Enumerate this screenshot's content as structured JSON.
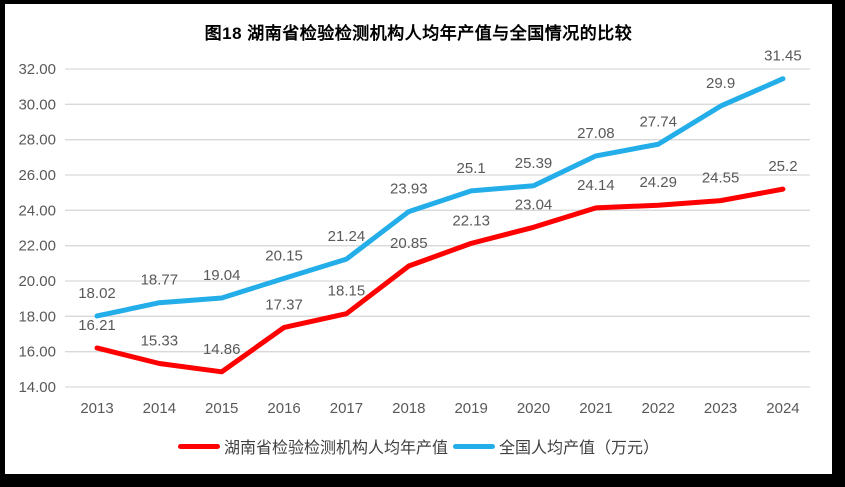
{
  "title": "图18 湖南省检验检测机构人均年产值与全国情况的比较",
  "chart_data": {
    "type": "line",
    "title": "图18 湖南省检验检测机构人均年产值与全国情况的比较",
    "categories": [
      "2013",
      "2014",
      "2015",
      "2016",
      "2017",
      "2018",
      "2019",
      "2020",
      "2021",
      "2022",
      "2023",
      "2024"
    ],
    "series": [
      {
        "key": "hunan",
        "name": "湖南省检验检测机构人均年产值",
        "color": "#FE0000",
        "values": [
          16.21,
          15.33,
          14.86,
          17.37,
          18.15,
          20.85,
          22.13,
          23.04,
          24.14,
          24.29,
          24.55,
          25.2
        ],
        "labels": [
          "16.21",
          "15.33",
          "14.86",
          "17.37",
          "18.15",
          "20.85",
          "22.13",
          "23.04",
          "24.14",
          "24.29",
          "24.55",
          "25.2"
        ]
      },
      {
        "key": "national",
        "name": "全国人均产值（万元）",
        "color": "#24AEE9",
        "values": [
          18.02,
          18.77,
          19.04,
          20.15,
          21.24,
          23.93,
          25.1,
          25.39,
          27.08,
          27.74,
          29.9,
          31.45
        ],
        "labels": [
          "18.02",
          "18.77",
          "19.04",
          "20.15",
          "21.24",
          "23.93",
          "25.1",
          "25.39",
          "27.08",
          "27.74",
          "29.9",
          "31.45"
        ]
      }
    ],
    "ylim": [
      14,
      32
    ],
    "ytick_values": [
      14,
      16,
      18,
      20,
      22,
      24,
      26,
      28,
      30,
      32
    ],
    "ytick_labels": [
      "14.00",
      "16.00",
      "18.00",
      "20.00",
      "22.00",
      "24.00",
      "26.00",
      "28.00",
      "30.00",
      "32.00"
    ],
    "grid": "horizontal-only",
    "legend_position": "bottom",
    "data_labels": true,
    "colors": {
      "gridline": "#D9D9D9",
      "tick_text": "#595959",
      "data_label_text": "#595959",
      "background": "#FFFFFF",
      "frame_border": "#000000"
    }
  }
}
